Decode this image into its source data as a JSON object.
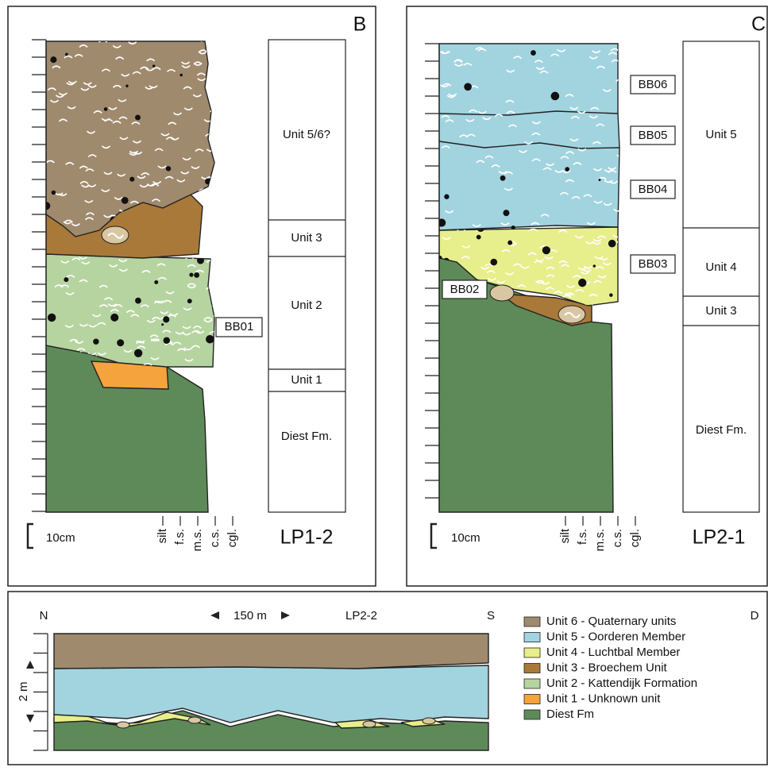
{
  "panels": [
    {
      "letter": "B",
      "section": "LP1-2",
      "scale": "10cm",
      "grain_sizes": [
        "silt",
        "f.s.",
        "m.s.",
        "c.s.",
        "cgl."
      ],
      "units": [
        "Unit 5/6?",
        "Unit 3",
        "Unit 2",
        "Unit 1",
        "Diest Fm."
      ],
      "samples": [
        "BB01"
      ]
    },
    {
      "letter": "C",
      "section": "LP2-1",
      "scale": "10cm",
      "grain_sizes": [
        "silt",
        "f.s.",
        "m.s.",
        "c.s.",
        "cgl."
      ],
      "units": [
        "Unit 5",
        "Unit 4",
        "Unit 3",
        "Diest Fm."
      ],
      "samples": [
        "BB06",
        "BB05",
        "BB04",
        "BB03",
        "BB02"
      ]
    }
  ],
  "cross_section": {
    "letter": "D",
    "title": "LP2-2",
    "north": "N",
    "south": "S",
    "distance": "150 m",
    "height": "2 m",
    "legend": [
      "Unit 6 - Quaternary units",
      "Unit 5 - Oorderen Member",
      "Unit 4 - Luchtbal Member",
      "Unit 3 - Broechem Unit",
      "Unit 2 - Kattendijk Formation",
      "Unit 1 - Unknown unit",
      "Diest Fm"
    ]
  }
}
